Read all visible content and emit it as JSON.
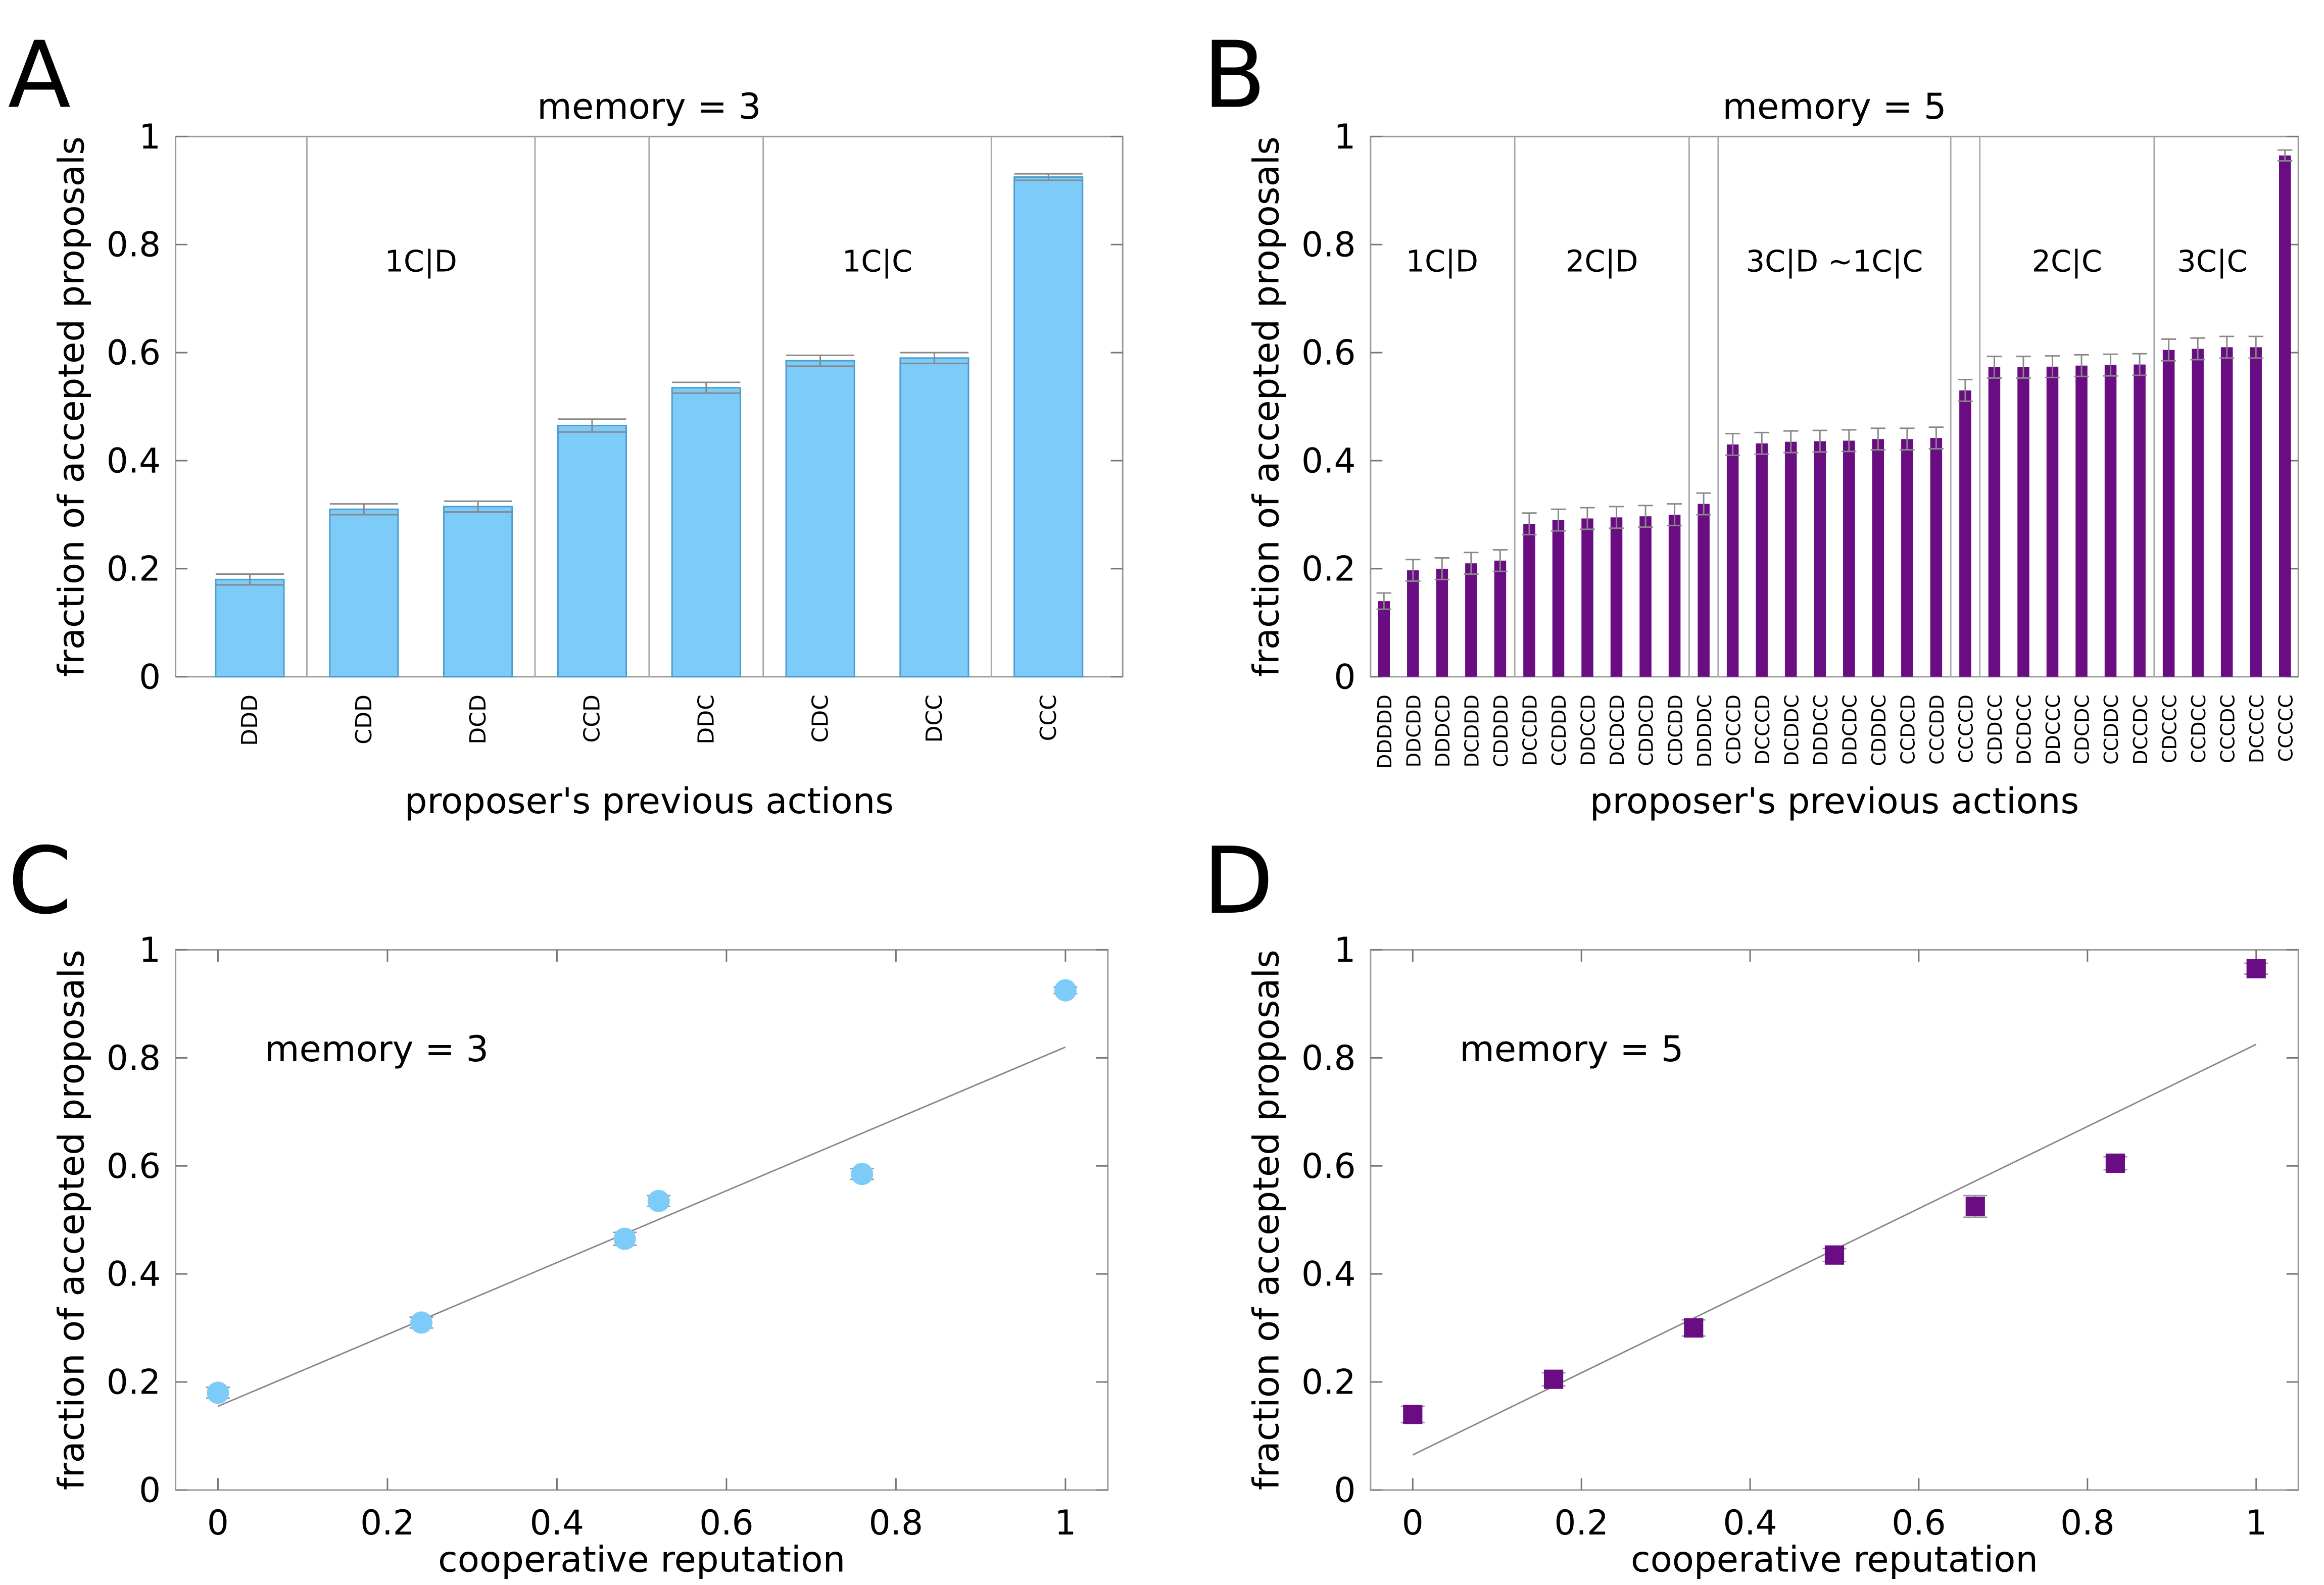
{
  "chart_data": [
    {
      "type": "bar",
      "letter": "A",
      "title": "memory = 3",
      "xlabel": "proposer's previous actions",
      "ylabel": "fraction of accepted proposals",
      "categories": [
        "DDD",
        "CDD",
        "DCD",
        "CCD",
        "DDC",
        "CDC",
        "DCC",
        "CCC"
      ],
      "values": [
        0.18,
        0.31,
        0.315,
        0.465,
        0.535,
        0.585,
        0.59,
        0.925
      ],
      "errors": [
        0.01,
        0.01,
        0.01,
        0.012,
        0.01,
        0.01,
        0.01,
        0.006
      ],
      "group_labels": [
        "1C|D",
        "1C|C"
      ],
      "color": "#7ccbf8",
      "ylim": [
        0,
        1
      ],
      "yticks": [
        0,
        0.2,
        0.4,
        0.6,
        0.8,
        1
      ]
    },
    {
      "type": "bar",
      "letter": "B",
      "title": "memory = 5",
      "xlabel": "proposer's previous actions",
      "ylabel": "fraction of accepted proposals",
      "categories": [
        "DDDDD",
        "DDCDD",
        "DDDCD",
        "DCDDD",
        "CDDDD",
        "DCCDD",
        "CCDDD",
        "DDCCD",
        "DCDCD",
        "CDDCD",
        "CDCDD",
        "DDDDC",
        "CDCCD",
        "DCCCD",
        "DCDDC",
        "DDDCC",
        "DDCDC",
        "CDDDC",
        "CCDCD",
        "CCCDD",
        "CCCCD",
        "CDDCC",
        "DCDCC",
        "DDCCC",
        "CDCDC",
        "CCDDC",
        "DCCDC",
        "CDCCC",
        "CCDCC",
        "CCCDC",
        "DCCCC",
        "CCCCC"
      ],
      "values": [
        0.14,
        0.197,
        0.2,
        0.21,
        0.215,
        0.283,
        0.29,
        0.293,
        0.295,
        0.297,
        0.3,
        0.32,
        0.43,
        0.432,
        0.435,
        0.436,
        0.437,
        0.44,
        0.44,
        0.442,
        0.53,
        0.573,
        0.573,
        0.574,
        0.576,
        0.577,
        0.578,
        0.605,
        0.607,
        0.61,
        0.61,
        0.965
      ],
      "errors": [
        0.015,
        0.02,
        0.02,
        0.02,
        0.02,
        0.02,
        0.02,
        0.02,
        0.02,
        0.02,
        0.02,
        0.02,
        0.02,
        0.02,
        0.02,
        0.02,
        0.02,
        0.02,
        0.02,
        0.02,
        0.02,
        0.02,
        0.02,
        0.02,
        0.02,
        0.02,
        0.02,
        0.02,
        0.02,
        0.02,
        0.02,
        0.01
      ],
      "group_labels": [
        "1C|D",
        "2C|D",
        "3C|D ~1C|C",
        "2C|C",
        "3C|C"
      ],
      "color": "#6a0d83",
      "ylim": [
        0,
        1
      ],
      "yticks": [
        0,
        0.2,
        0.4,
        0.6,
        0.8,
        1
      ]
    },
    {
      "type": "scatter",
      "letter": "C",
      "annotation": "memory = 3",
      "xlabel": "cooperative reputation",
      "ylabel": "fraction of accepted proposals",
      "x": [
        0,
        0.24,
        0.48,
        0.52,
        0.76,
        1
      ],
      "values": [
        0.18,
        0.31,
        0.465,
        0.535,
        0.585,
        0.925
      ],
      "errors": [
        0.01,
        0.01,
        0.012,
        0.01,
        0.01,
        0.006
      ],
      "fit": {
        "x": [
          0,
          1
        ],
        "values": [
          0.155,
          0.82
        ]
      },
      "marker": "circle",
      "color": "#7ccbf8",
      "xlim": [
        -0.05,
        1.05
      ],
      "xticks": [
        0,
        0.2,
        0.4,
        0.6,
        0.8,
        1
      ],
      "ylim": [
        0,
        1
      ],
      "yticks": [
        0,
        0.2,
        0.4,
        0.6,
        0.8,
        1
      ]
    },
    {
      "type": "scatter",
      "letter": "D",
      "annotation": "memory = 5",
      "xlabel": "cooperative reputation",
      "ylabel": "fraction of accepted proposals",
      "x": [
        0,
        0.167,
        0.333,
        0.5,
        0.667,
        0.833,
        1
      ],
      "values": [
        0.14,
        0.205,
        0.3,
        0.435,
        0.525,
        0.605,
        0.965
      ],
      "errors": [
        0.015,
        0.012,
        0.015,
        0.012,
        0.02,
        0.012,
        0.01
      ],
      "fit": {
        "x": [
          0,
          1
        ],
        "values": [
          0.065,
          0.825
        ]
      },
      "marker": "square",
      "color": "#6a0d83",
      "xlim": [
        -0.05,
        1.05
      ],
      "xticks": [
        0,
        0.2,
        0.4,
        0.6,
        0.8,
        1
      ],
      "ylim": [
        0,
        1
      ],
      "yticks": [
        0,
        0.2,
        0.4,
        0.6,
        0.8,
        1
      ]
    }
  ]
}
